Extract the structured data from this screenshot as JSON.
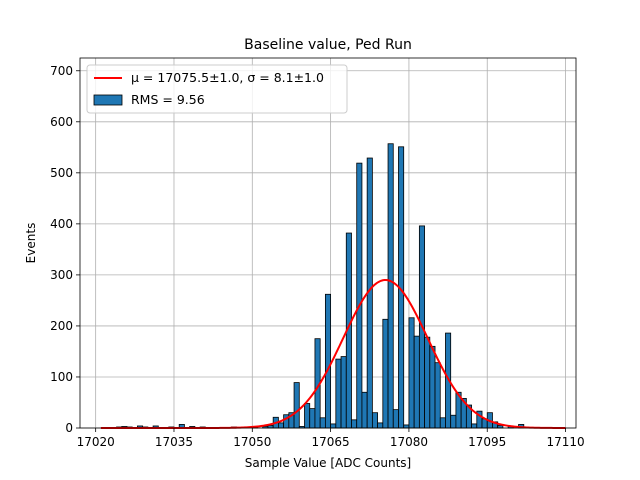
{
  "chart_data": {
    "type": "bar",
    "title": "Baseline value, Ped Run",
    "xlabel": "Sample Value [ADC Counts]",
    "ylabel": "Events",
    "xlim": [
      17017,
      17112
    ],
    "ylim": [
      0,
      725
    ],
    "xticks": [
      17020,
      17035,
      17050,
      17065,
      17080,
      17095,
      17110
    ],
    "yticks": [
      0,
      100,
      200,
      300,
      400,
      500,
      600,
      700
    ],
    "grid": true,
    "bar_color": "#1f77b4",
    "fit_color": "#ff0000",
    "bin_width": 1,
    "histogram": {
      "bins": [
        17024,
        17025,
        17026,
        17028,
        17029,
        17031,
        17034,
        17036,
        17038,
        17040,
        17046,
        17050,
        17052,
        17053,
        17054,
        17055,
        17056,
        17057,
        17058,
        17059,
        17060,
        17061,
        17062,
        17063,
        17064,
        17065,
        17066,
        17067,
        17068,
        17069,
        17070,
        17071,
        17072,
        17073,
        17074,
        17075,
        17076,
        17077,
        17078,
        17079,
        17080,
        17081,
        17082,
        17083,
        17084,
        17085,
        17086,
        17087,
        17088,
        17089,
        17090,
        17091,
        17092,
        17093,
        17094,
        17095,
        17096,
        17097,
        17099,
        17101
      ],
      "counts": [
        2,
        3,
        2,
        4,
        2,
        4,
        2,
        7,
        3,
        2,
        2,
        3,
        3,
        5,
        21,
        10,
        26,
        30,
        89,
        3,
        48,
        38,
        175,
        20,
        262,
        8,
        135,
        140,
        382,
        16,
        519,
        70,
        529,
        30,
        10,
        213,
        557,
        36,
        551,
        6,
        216,
        180,
        396,
        178,
        160,
        128,
        20,
        186,
        25,
        70,
        58,
        45,
        8,
        33,
        18,
        30,
        12,
        5,
        3,
        7
      ]
    },
    "fit": {
      "mu": 17075.5,
      "sigma": 8.1,
      "amplitude": 290,
      "x_range": [
        17021,
        17110
      ]
    },
    "legend": {
      "position": "upper-left",
      "entries": [
        {
          "kind": "line",
          "label": "μ = 17075.5±1.0, σ = 8.1±1.0"
        },
        {
          "kind": "patch",
          "label": "RMS = 9.56"
        }
      ]
    }
  }
}
